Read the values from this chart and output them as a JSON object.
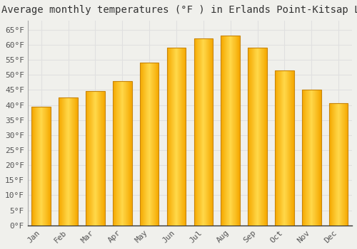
{
  "title": "Average monthly temperatures (°F ) in Erlands Point-Kitsap Lake",
  "months": [
    "Jan",
    "Feb",
    "Mar",
    "Apr",
    "May",
    "Jun",
    "Jul",
    "Aug",
    "Sep",
    "Oct",
    "Nov",
    "Dec"
  ],
  "values": [
    39.5,
    42.5,
    44.5,
    48.0,
    54.0,
    59.0,
    62.0,
    63.0,
    59.0,
    51.5,
    45.0,
    40.5
  ],
  "bar_color_center": "#FFD84A",
  "bar_color_edge": "#F5A800",
  "bar_edge_color": "#C8850A",
  "ylim": [
    0,
    68
  ],
  "yticks": [
    0,
    5,
    10,
    15,
    20,
    25,
    30,
    35,
    40,
    45,
    50,
    55,
    60,
    65
  ],
  "background_color": "#f0f0ec",
  "grid_color": "#e0e0e0",
  "title_fontsize": 10,
  "tick_fontsize": 8,
  "font_family": "monospace"
}
